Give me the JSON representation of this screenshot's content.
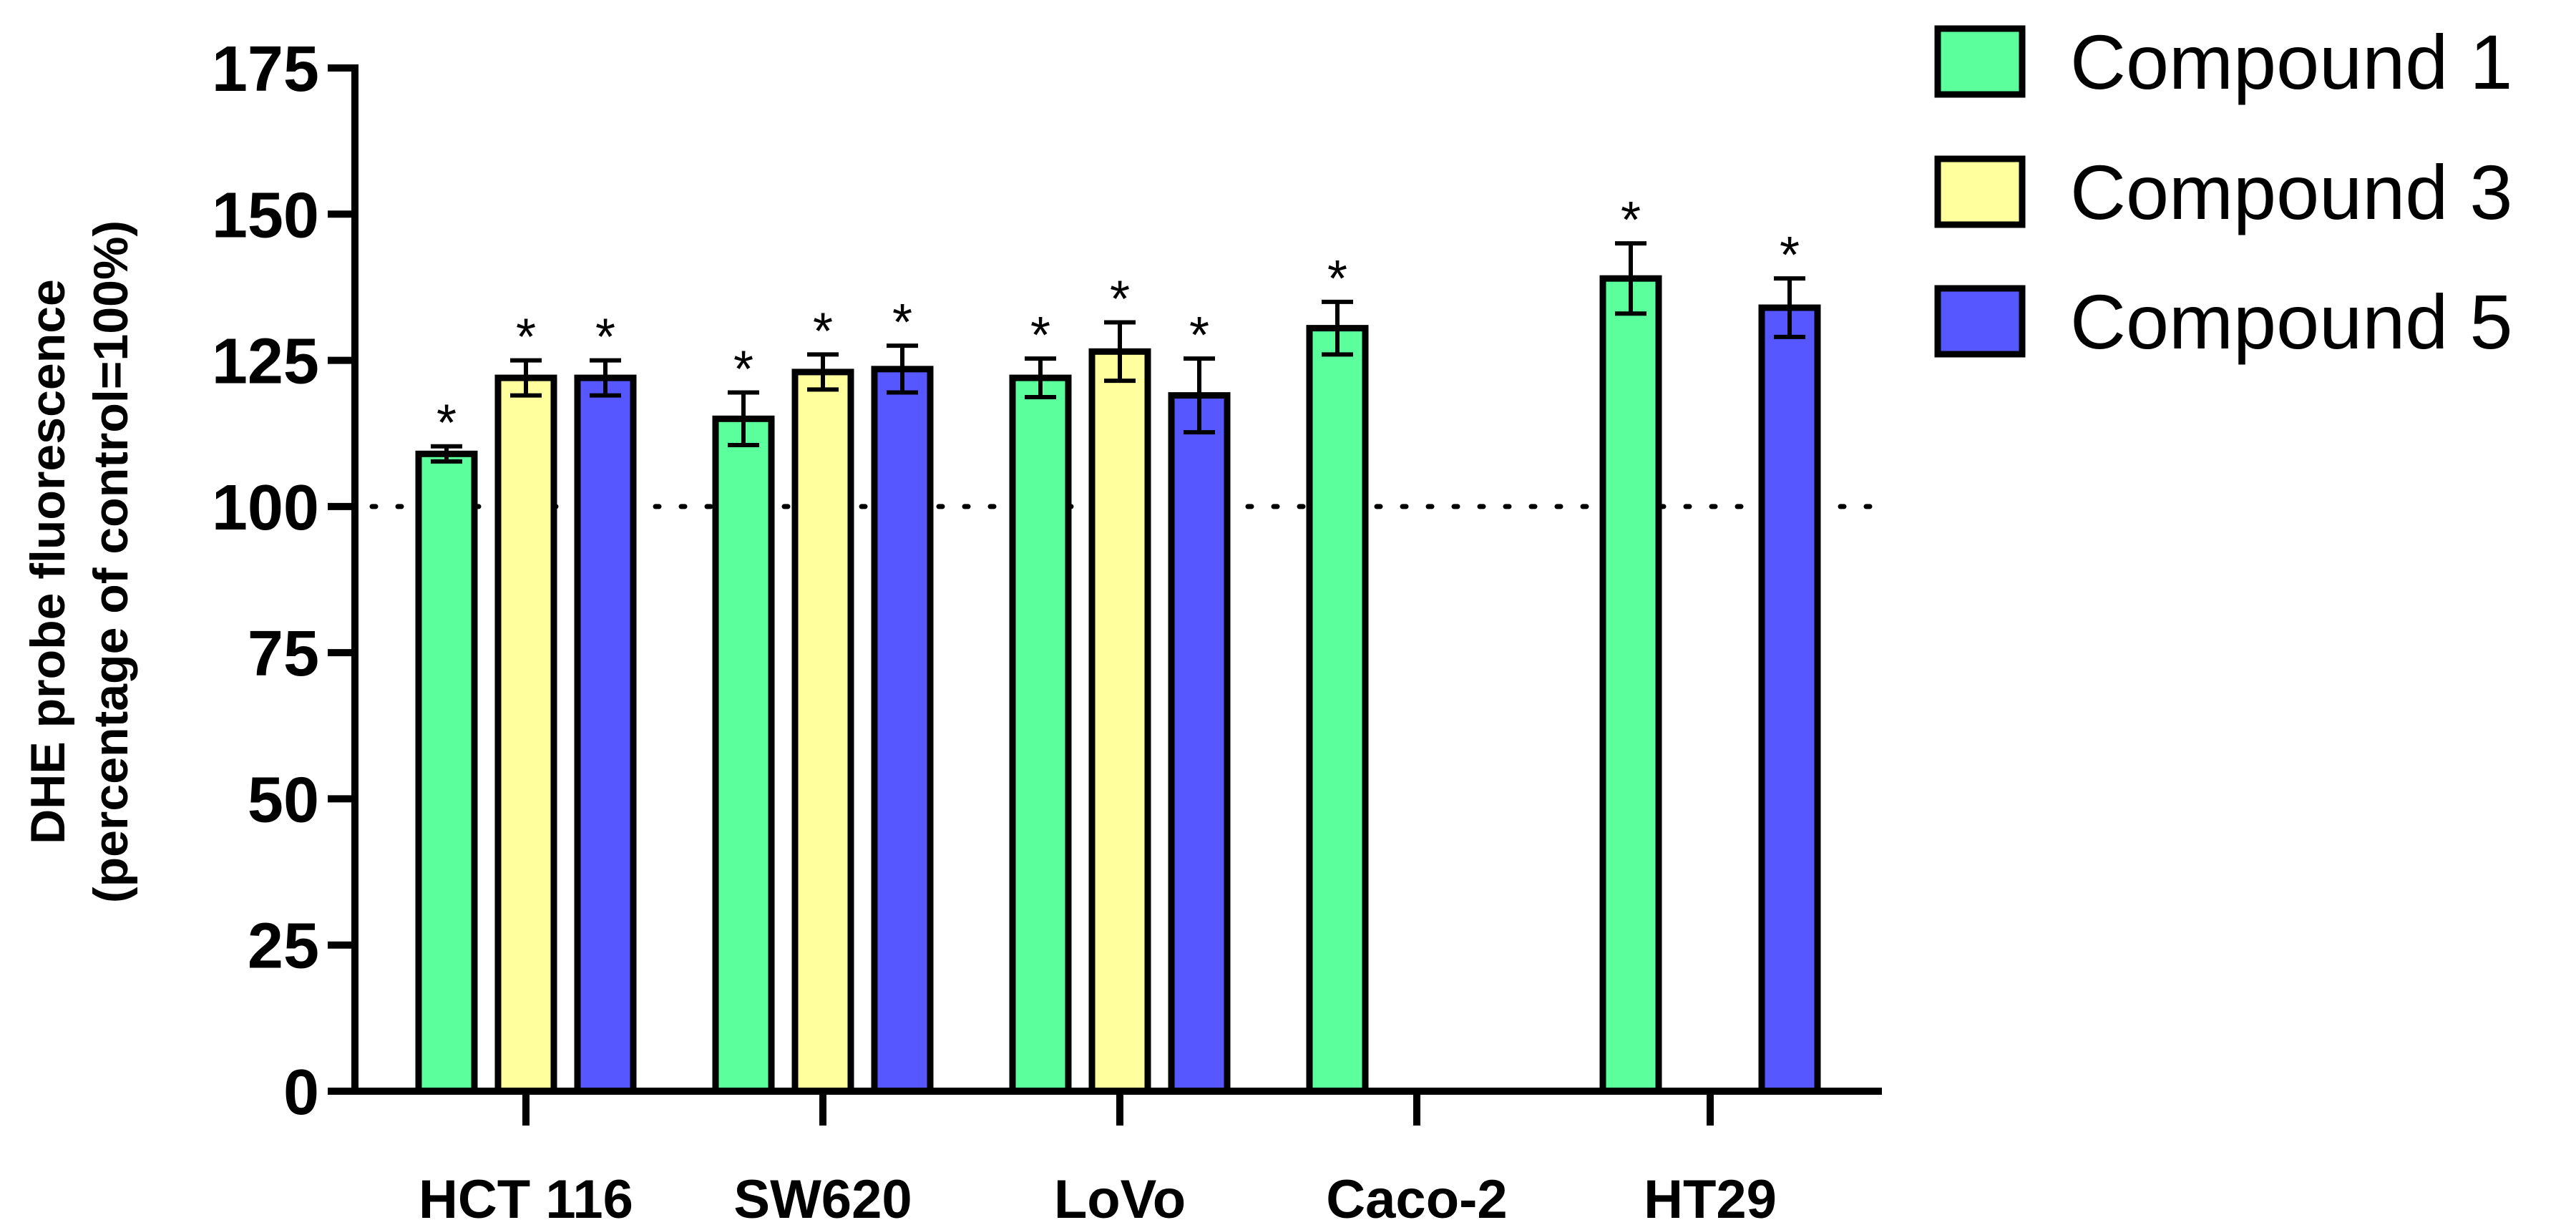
{
  "chart_data": {
    "type": "bar",
    "title": "",
    "xlabel": "",
    "ylabel": [
      "DHE probe fluorescence",
      "(percentage of control=100%)"
    ],
    "ylim": [
      0,
      175
    ],
    "yticks": [
      0,
      25,
      50,
      75,
      100,
      125,
      150,
      175
    ],
    "reference_line": 100,
    "legend_position": "top-right",
    "significance_marker": "*",
    "categories": [
      "HCT 116",
      "SW620",
      "LoVo",
      "Caco-2",
      "HT29"
    ],
    "series": [
      {
        "name": "Compound 1",
        "color": "#5BFF9B",
        "values": [
          109,
          115,
          122,
          130.5,
          139
        ],
        "errors": [
          1.3,
          4.5,
          3.3,
          4.5,
          6
        ]
      },
      {
        "name": "Compound 3",
        "color": "#FFFF9E",
        "values": [
          122,
          123,
          126.5,
          null,
          null
        ],
        "errors": [
          3,
          3,
          5,
          null,
          null
        ]
      },
      {
        "name": "Compound 5",
        "color": "#5757FF",
        "values": [
          122,
          123.5,
          119,
          null,
          134
        ],
        "errors": [
          3,
          4,
          6.3,
          null,
          5
        ]
      }
    ]
  }
}
